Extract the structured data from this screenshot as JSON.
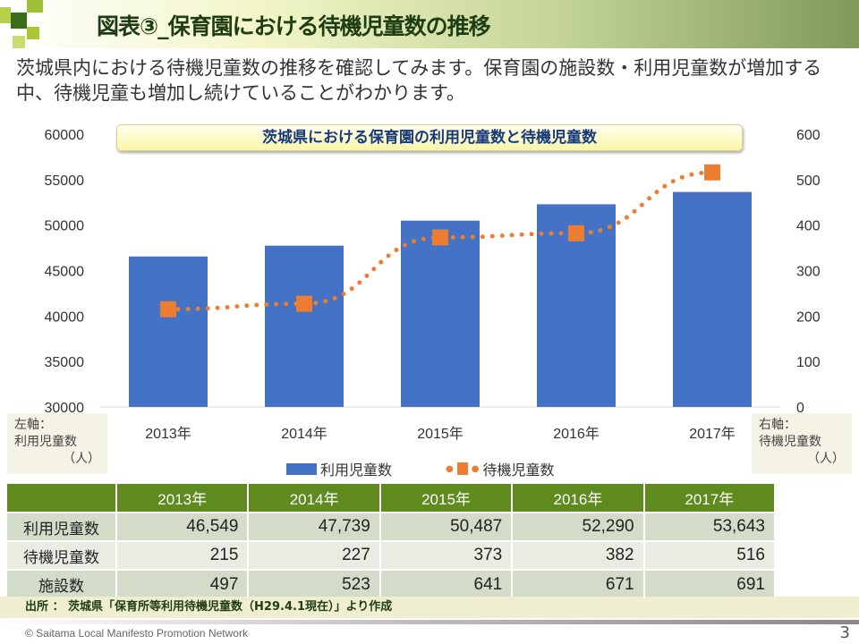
{
  "header": {
    "title": "図表③_保育園における待機児童数の推移"
  },
  "intro": "茨城県内における待機児童数の推移を確認してみます。保育園の施設数・利用児童数が増加する中、待機児童も増加し続けていることがわかります。",
  "chart_data": {
    "type": "bar+line",
    "title": "茨城県における保育園の利用児童数と待機児童数",
    "categories": [
      "2013年",
      "2014年",
      "2015年",
      "2016年",
      "2017年"
    ],
    "series": [
      {
        "name": "利用児童数",
        "type": "bar",
        "axis": "left",
        "values": [
          46549,
          47739,
          50487,
          52290,
          53643
        ],
        "color": "#4472c4"
      },
      {
        "name": "待機児童数",
        "type": "line",
        "axis": "right",
        "values": [
          215,
          227,
          373,
          382,
          516
        ],
        "color": "#ed7d31"
      }
    ],
    "left_axis": {
      "label": "左軸：利用児童数（人）",
      "range": [
        30000,
        60000
      ],
      "ticks": [
        "60000",
        "55000",
        "50000",
        "45000",
        "40000",
        "35000",
        "30000"
      ]
    },
    "right_axis": {
      "label": "右軸：待機児童数（人）",
      "range": [
        0,
        600
      ],
      "ticks": [
        "600",
        "500",
        "400",
        "300",
        "200",
        "100",
        "0"
      ]
    },
    "legend": "bottom",
    "grid": false
  },
  "axis_labels": {
    "left": [
      "左軸：",
      "利用児童数",
      "（人）"
    ],
    "right": [
      "右軸：",
      "待機児童数",
      "（人）"
    ]
  },
  "table": {
    "headers": [
      "",
      "2013年",
      "2014年",
      "2015年",
      "2016年",
      "2017年"
    ],
    "rows": [
      {
        "label": "利用児童数",
        "values": [
          "46,549",
          "47,739",
          "50,487",
          "52,290",
          "53,643"
        ]
      },
      {
        "label": "待機児童数",
        "values": [
          "215",
          "227",
          "373",
          "382",
          "516"
        ]
      },
      {
        "label": "施設数",
        "values": [
          "497",
          "523",
          "641",
          "671",
          "691"
        ]
      }
    ]
  },
  "source": "出所 ： 茨城県「保育所等利用待機児童数（H29.4.1現在）」より作成",
  "footer": {
    "copyright": "© Saitama Local Manifesto Promotion Network",
    "page": "3"
  }
}
